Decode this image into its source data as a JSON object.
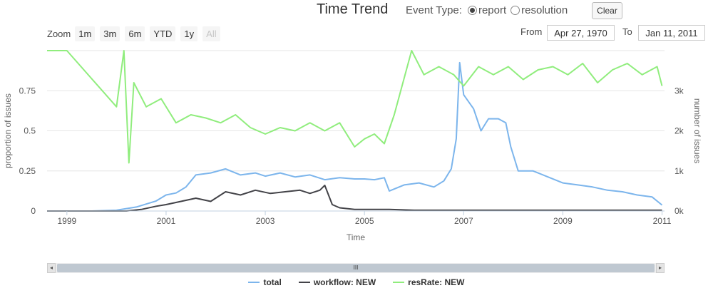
{
  "header": {
    "title": "Time Trend",
    "event_type_label": "Event Type:",
    "options": [
      {
        "label": "report",
        "selected": true
      },
      {
        "label": "resolution",
        "selected": false
      }
    ],
    "clear_label": "Clear"
  },
  "zoom": {
    "label": "Zoom",
    "buttons": [
      {
        "label": "1m",
        "enabled": true
      },
      {
        "label": "3m",
        "enabled": true
      },
      {
        "label": "6m",
        "enabled": true
      },
      {
        "label": "YTD",
        "enabled": true
      },
      {
        "label": "1y",
        "enabled": true
      },
      {
        "label": "All",
        "enabled": false
      }
    ]
  },
  "range": {
    "from_label": "From",
    "from_value": "Apr 27, 1970",
    "to_label": "To",
    "to_value": "Jan 11, 2011"
  },
  "navigator": {
    "grip": "III"
  },
  "chart_data": {
    "type": "line",
    "xlabel": "Time",
    "ylabel_left": "proportion of issues",
    "ylabel_right": "number of issues",
    "xlim": [
      1998.6,
      2011.05
    ],
    "x_ticks": [
      {
        "value": 1999,
        "label": "1999"
      },
      {
        "value": 2001,
        "label": "2001"
      },
      {
        "value": 2003,
        "label": "2003"
      },
      {
        "value": 2005,
        "label": "2005"
      },
      {
        "value": 2007,
        "label": "2007"
      },
      {
        "value": 2009,
        "label": "2009"
      },
      {
        "value": 2011,
        "label": "2011"
      }
    ],
    "left_axis": {
      "range": [
        0,
        1
      ],
      "ticks": [
        {
          "value": 0,
          "label": "0"
        },
        {
          "value": 0.25,
          "label": "0.25"
        },
        {
          "value": 0.5,
          "label": "0.5"
        },
        {
          "value": 0.75,
          "label": "0.75"
        }
      ]
    },
    "right_axis": {
      "range": [
        0,
        4000
      ],
      "ticks": [
        {
          "value": 0,
          "label": "0k"
        },
        {
          "value": 1000,
          "label": "1k"
        },
        {
          "value": 2000,
          "label": "2k"
        },
        {
          "value": 3000,
          "label": "3k"
        }
      ]
    },
    "grid": true,
    "legend_position": "bottom",
    "series": [
      {
        "name": "total",
        "axis": "right",
        "color": "#7cb5ec",
        "points": [
          [
            1998.6,
            0
          ],
          [
            1999.5,
            0
          ],
          [
            2000.0,
            20
          ],
          [
            2000.4,
            100
          ],
          [
            2000.8,
            250
          ],
          [
            2001.0,
            400
          ],
          [
            2001.2,
            450
          ],
          [
            2001.4,
            600
          ],
          [
            2001.6,
            900
          ],
          [
            2001.9,
            950
          ],
          [
            2002.2,
            1050
          ],
          [
            2002.5,
            900
          ],
          [
            2002.8,
            950
          ],
          [
            2003.0,
            870
          ],
          [
            2003.3,
            950
          ],
          [
            2003.6,
            850
          ],
          [
            2003.9,
            900
          ],
          [
            2004.2,
            780
          ],
          [
            2004.5,
            830
          ],
          [
            2004.8,
            800
          ],
          [
            2005.0,
            800
          ],
          [
            2005.2,
            780
          ],
          [
            2005.4,
            830
          ],
          [
            2005.5,
            500
          ],
          [
            2005.8,
            650
          ],
          [
            2006.1,
            700
          ],
          [
            2006.4,
            600
          ],
          [
            2006.6,
            750
          ],
          [
            2006.75,
            1050
          ],
          [
            2006.85,
            1800
          ],
          [
            2006.92,
            3700
          ],
          [
            2007.0,
            2900
          ],
          [
            2007.2,
            2550
          ],
          [
            2007.35,
            2000
          ],
          [
            2007.5,
            2300
          ],
          [
            2007.7,
            2300
          ],
          [
            2007.85,
            2200
          ],
          [
            2007.95,
            1600
          ],
          [
            2008.1,
            1000
          ],
          [
            2008.4,
            1000
          ],
          [
            2008.7,
            850
          ],
          [
            2009.0,
            700
          ],
          [
            2009.3,
            650
          ],
          [
            2009.6,
            600
          ],
          [
            2009.9,
            520
          ],
          [
            2010.2,
            480
          ],
          [
            2010.5,
            400
          ],
          [
            2010.8,
            350
          ],
          [
            2011.0,
            150
          ]
        ]
      },
      {
        "name": "workflow: NEW",
        "axis": "left",
        "color": "#434348",
        "points": [
          [
            1998.6,
            0
          ],
          [
            2000.2,
            0
          ],
          [
            2000.5,
            0.01
          ],
          [
            2000.8,
            0.03
          ],
          [
            2001.0,
            0.04
          ],
          [
            2001.3,
            0.06
          ],
          [
            2001.6,
            0.08
          ],
          [
            2001.9,
            0.06
          ],
          [
            2002.2,
            0.12
          ],
          [
            2002.5,
            0.1
          ],
          [
            2002.8,
            0.13
          ],
          [
            2003.1,
            0.11
          ],
          [
            2003.4,
            0.12
          ],
          [
            2003.7,
            0.13
          ],
          [
            2003.9,
            0.11
          ],
          [
            2004.1,
            0.13
          ],
          [
            2004.2,
            0.16
          ],
          [
            2004.35,
            0.04
          ],
          [
            2004.5,
            0.02
          ],
          [
            2004.8,
            0.01
          ],
          [
            2005.5,
            0.01
          ],
          [
            2006.0,
            0.005
          ],
          [
            2008.0,
            0.005
          ],
          [
            2011.0,
            0.005
          ]
        ]
      },
      {
        "name": "resRate: NEW",
        "axis": "left",
        "color": "#90ed7d",
        "points": [
          [
            1998.6,
            1.0
          ],
          [
            1999.0,
            1.0
          ],
          [
            2000.0,
            0.65
          ],
          [
            2000.15,
            1.0
          ],
          [
            2000.25,
            0.3
          ],
          [
            2000.35,
            0.8
          ],
          [
            2000.6,
            0.65
          ],
          [
            2000.9,
            0.7
          ],
          [
            2001.2,
            0.55
          ],
          [
            2001.5,
            0.6
          ],
          [
            2001.8,
            0.58
          ],
          [
            2002.1,
            0.55
          ],
          [
            2002.4,
            0.6
          ],
          [
            2002.7,
            0.52
          ],
          [
            2003.0,
            0.48
          ],
          [
            2003.3,
            0.52
          ],
          [
            2003.6,
            0.5
          ],
          [
            2003.9,
            0.55
          ],
          [
            2004.2,
            0.5
          ],
          [
            2004.5,
            0.55
          ],
          [
            2004.8,
            0.4
          ],
          [
            2005.0,
            0.45
          ],
          [
            2005.2,
            0.48
          ],
          [
            2005.4,
            0.42
          ],
          [
            2005.6,
            0.6
          ],
          [
            2005.95,
            1.0
          ],
          [
            2006.2,
            0.85
          ],
          [
            2006.5,
            0.9
          ],
          [
            2006.8,
            0.85
          ],
          [
            2007.0,
            0.78
          ],
          [
            2007.3,
            0.9
          ],
          [
            2007.6,
            0.85
          ],
          [
            2007.9,
            0.9
          ],
          [
            2008.2,
            0.82
          ],
          [
            2008.5,
            0.88
          ],
          [
            2008.8,
            0.9
          ],
          [
            2009.1,
            0.85
          ],
          [
            2009.4,
            0.92
          ],
          [
            2009.7,
            0.8
          ],
          [
            2010.0,
            0.88
          ],
          [
            2010.3,
            0.92
          ],
          [
            2010.6,
            0.85
          ],
          [
            2010.9,
            0.9
          ],
          [
            2011.0,
            0.78
          ]
        ]
      }
    ]
  }
}
